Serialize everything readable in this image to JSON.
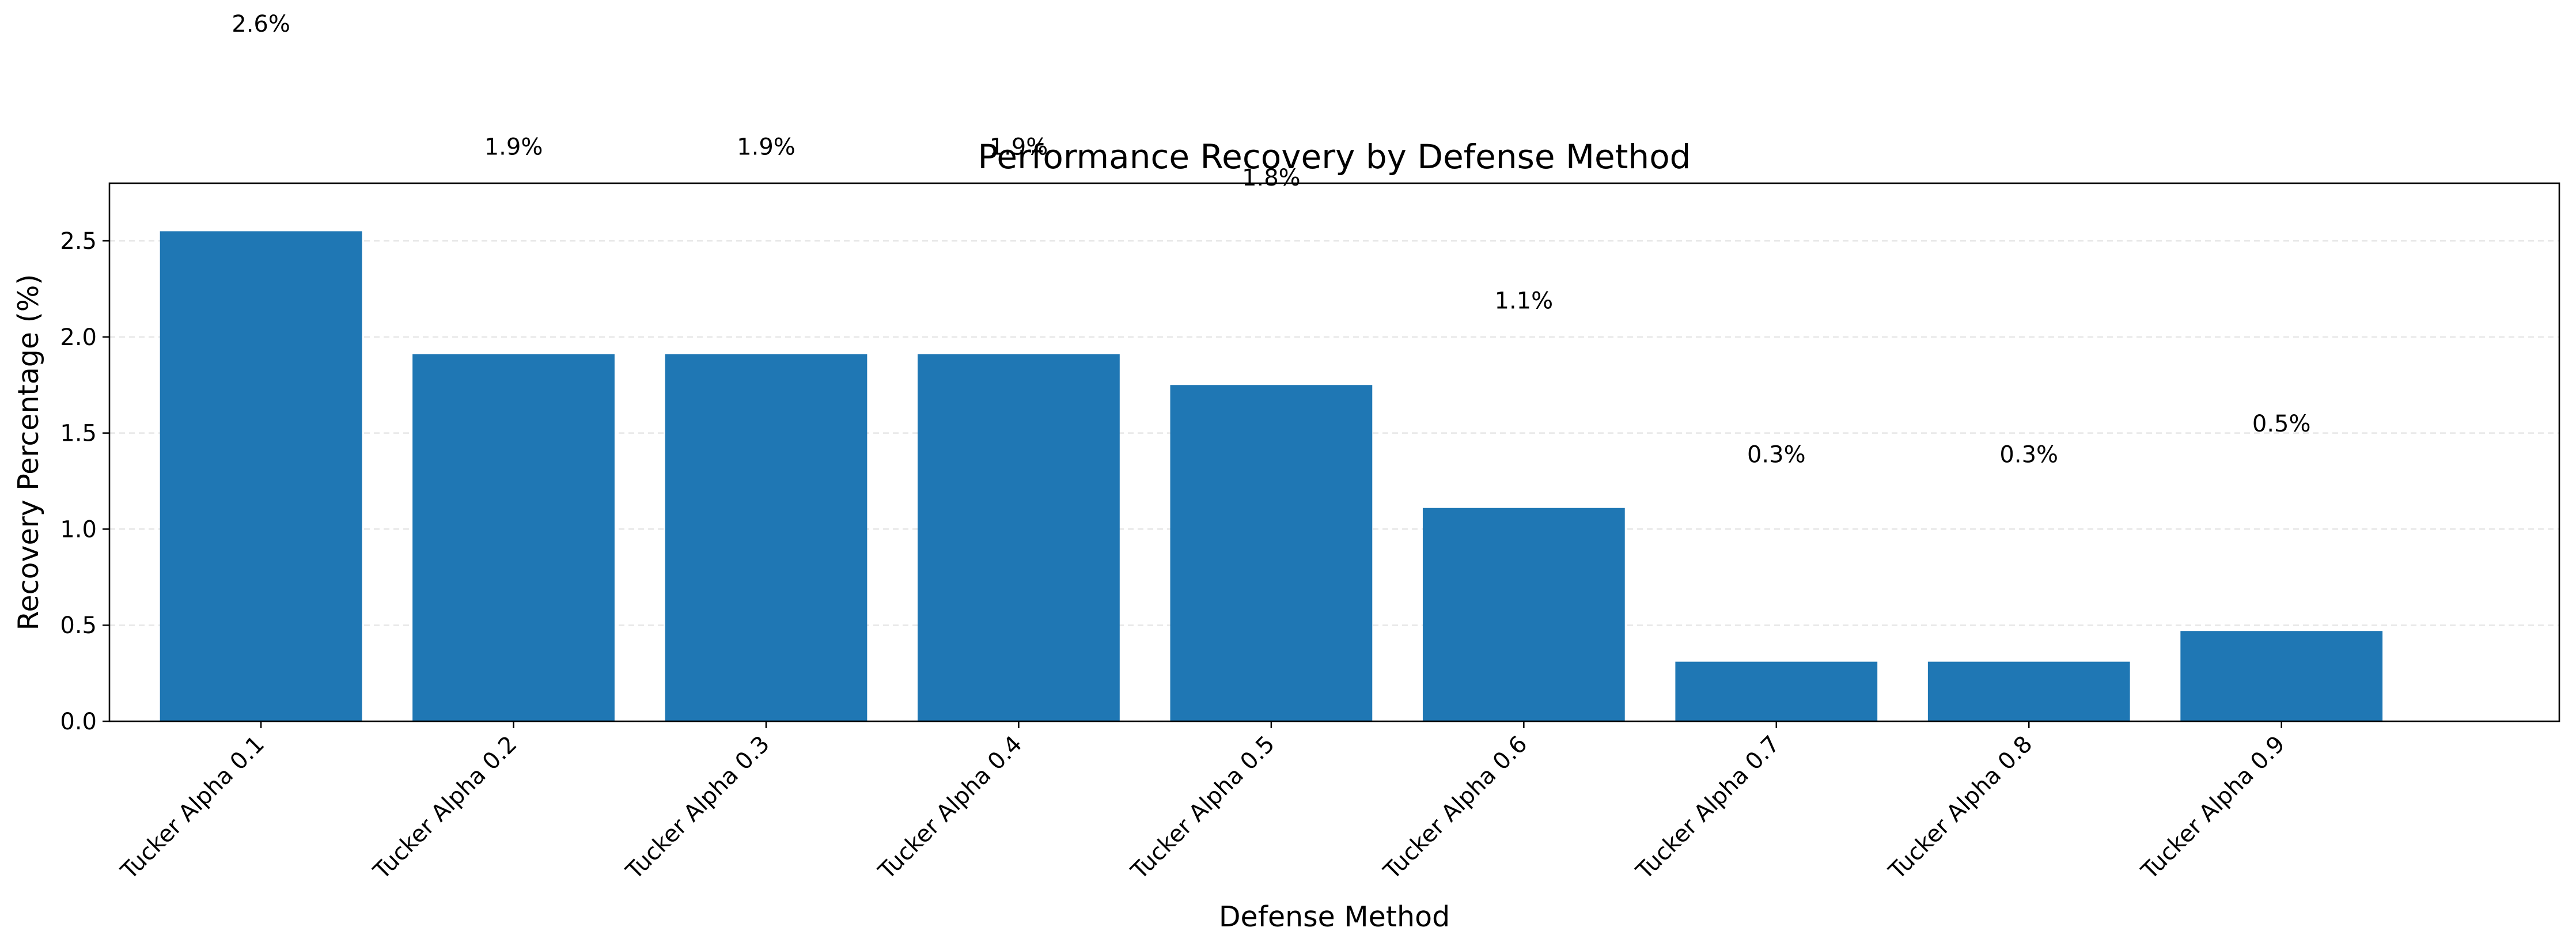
{
  "chart_data": {
    "type": "bar",
    "title": "Performance Recovery by Defense Method",
    "xlabel": "Defense Method",
    "ylabel": "Recovery Percentage (%)",
    "categories": [
      "Tucker Alpha 0.1",
      "Tucker Alpha 0.2",
      "Tucker Alpha 0.3",
      "Tucker Alpha 0.4",
      "Tucker Alpha 0.5",
      "Tucker Alpha 0.6",
      "Tucker Alpha 0.7",
      "Tucker Alpha 0.8",
      "Tucker Alpha 0.9"
    ],
    "values": [
      2.55,
      1.91,
      1.91,
      1.91,
      1.75,
      1.11,
      0.31,
      0.31,
      0.47
    ],
    "value_labels": [
      "2.6%",
      "1.9%",
      "1.9%",
      "1.9%",
      "1.8%",
      "1.1%",
      "0.3%",
      "0.3%",
      "0.5%"
    ],
    "label_values": [
      3.63,
      2.99,
      2.99,
      2.99,
      2.83,
      2.19,
      1.39,
      1.39,
      1.55
    ],
    "ylim": [
      0,
      2.8
    ],
    "yticks": [
      0.0,
      0.5,
      1.0,
      1.5,
      2.0,
      2.5
    ],
    "ytick_labels": [
      "0.0",
      "0.5",
      "1.0",
      "1.5",
      "2.0",
      "2.5"
    ],
    "grid": "y-dashed",
    "bar_color": "#1f77b4",
    "grid_color": "#e6e6e6"
  }
}
